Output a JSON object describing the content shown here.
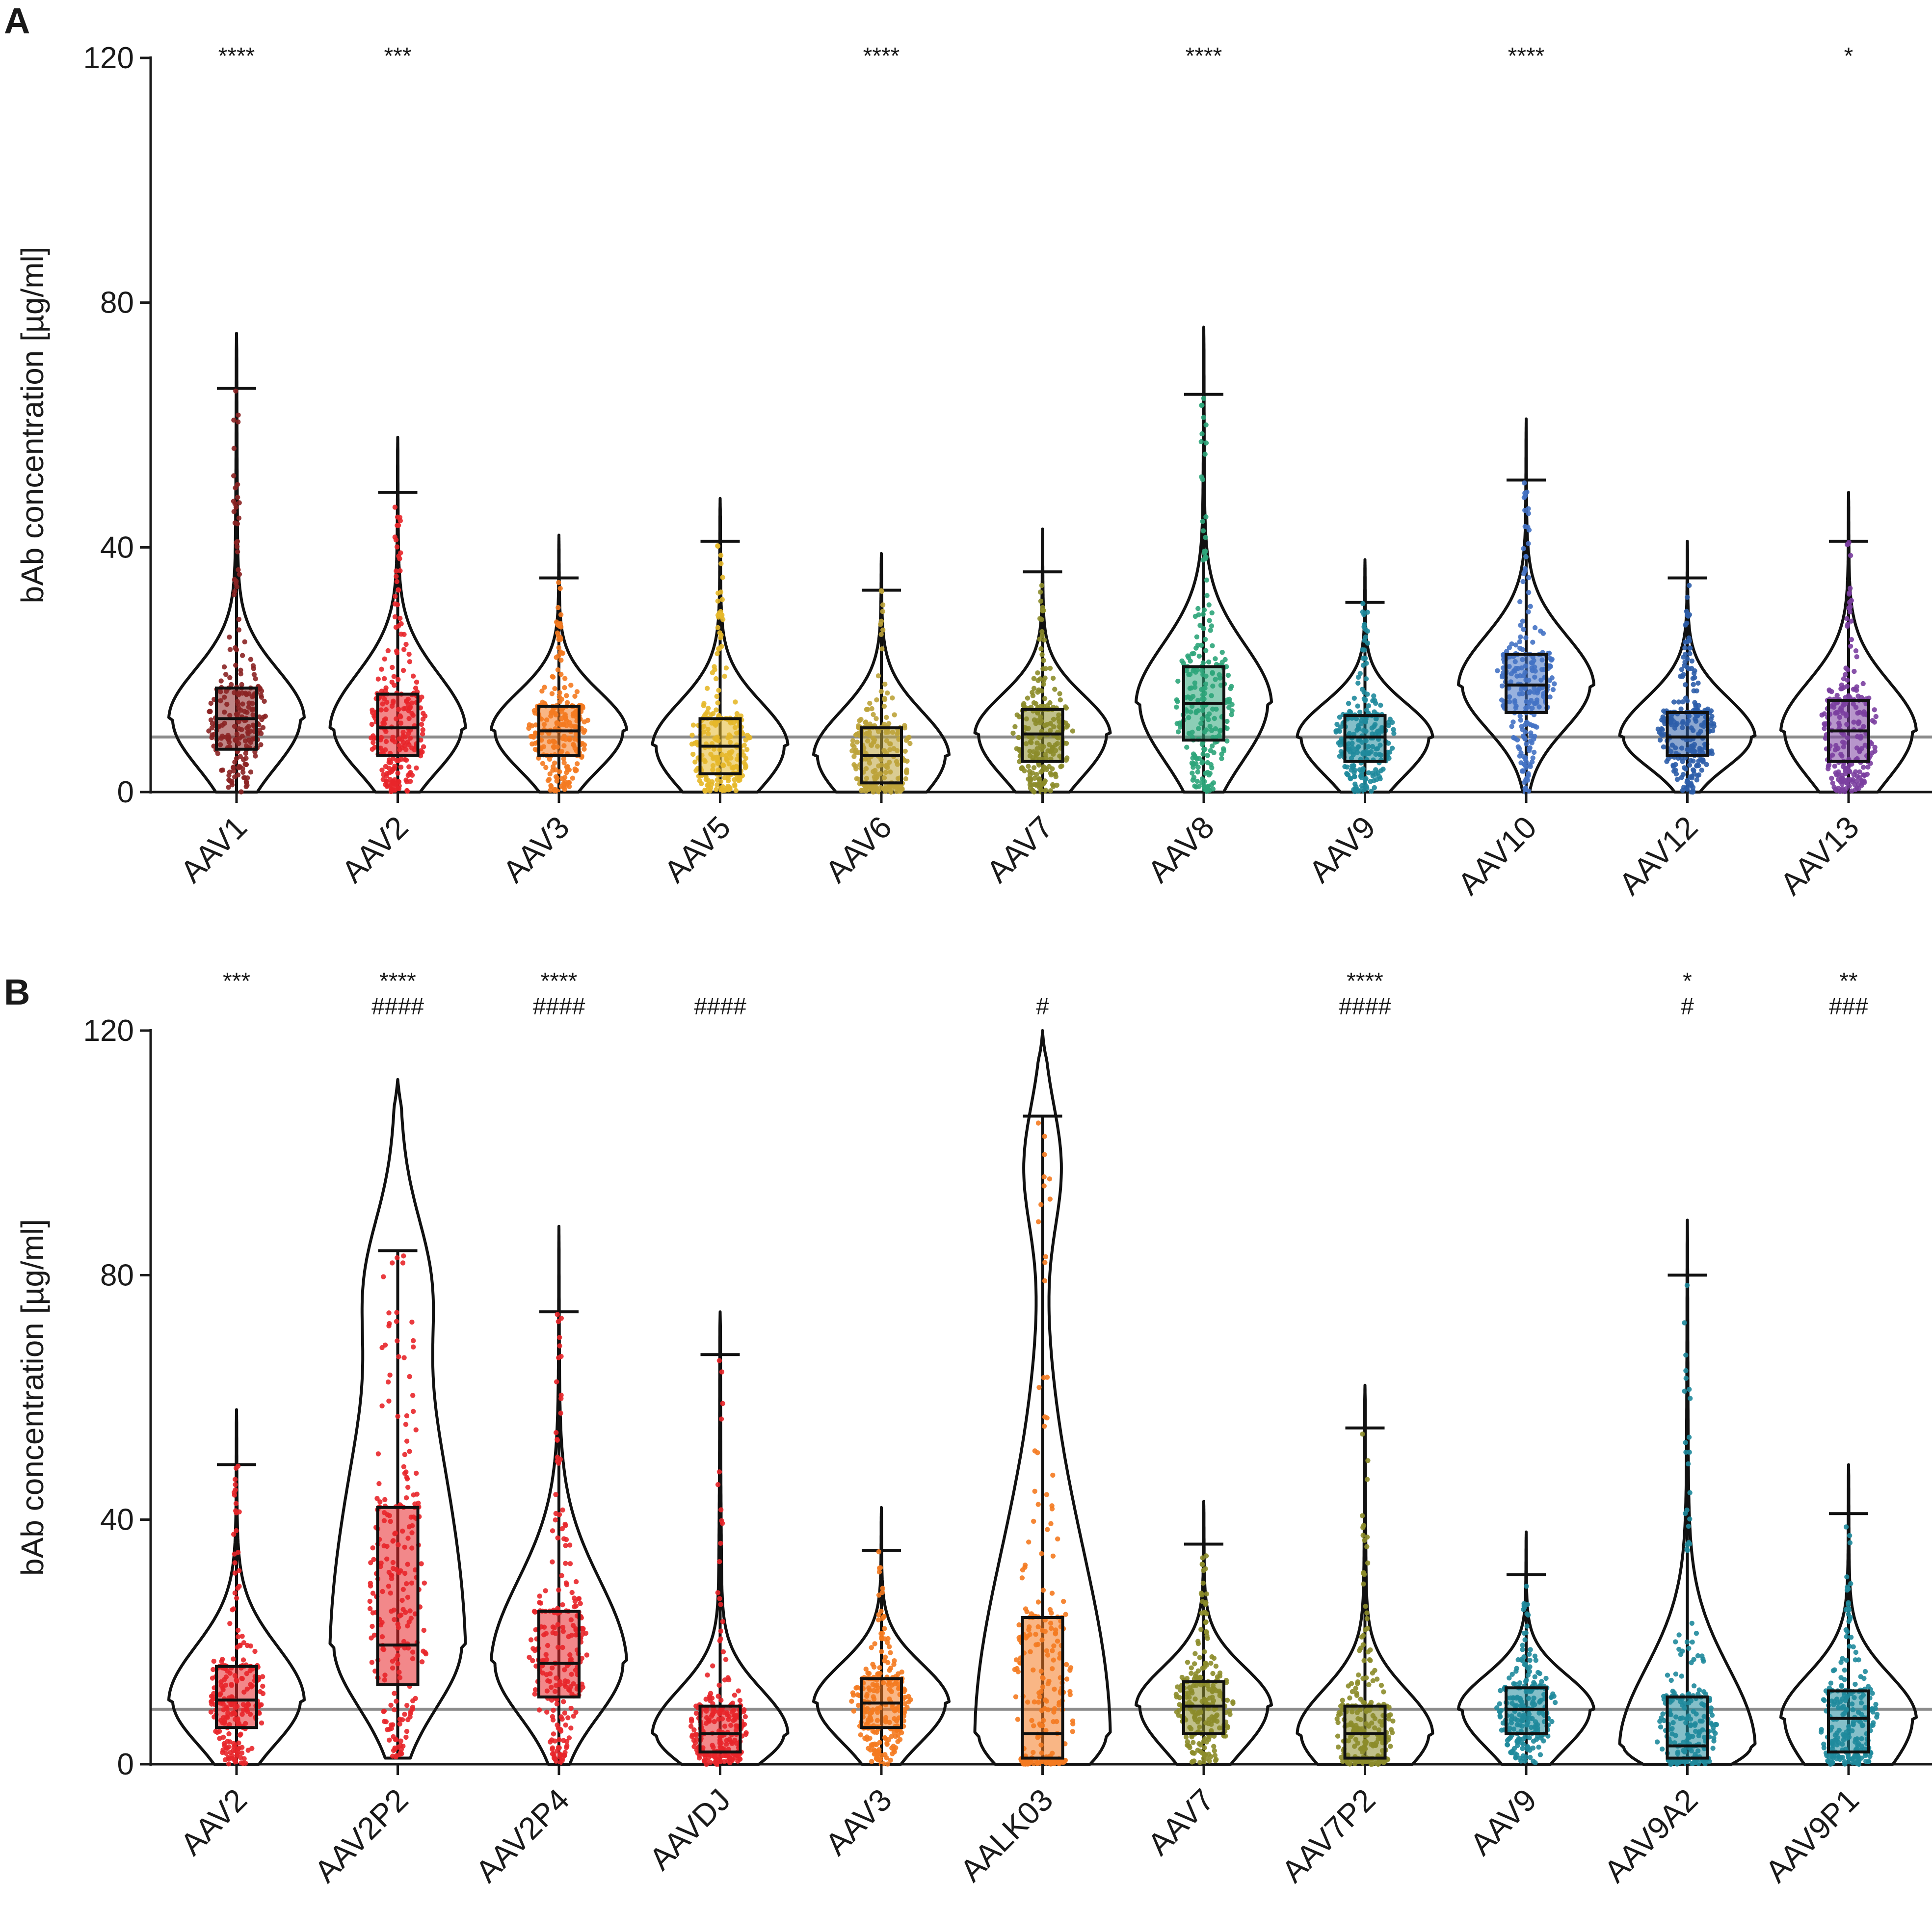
{
  "chart_data": [
    {
      "panel": "A",
      "type": "violin",
      "ylabel": "bAb concentration [µg/ml]",
      "ylim": [
        0,
        120
      ],
      "yticks": [
        0,
        40,
        80,
        120
      ],
      "threshold": 9,
      "categories": [
        {
          "name": "AAV1",
          "color": "#8B2323",
          "sig": [
            "****"
          ],
          "q1": 7,
          "median": 12,
          "q3": 17,
          "whisker_low": 0,
          "whisker_high": 66,
          "max": 75
        },
        {
          "name": "AAV2",
          "color": "#E8262A",
          "sig": [
            "***"
          ],
          "q1": 6,
          "median": 10.5,
          "q3": 16,
          "whisker_low": 0,
          "whisker_high": 49,
          "max": 58
        },
        {
          "name": "AAV3",
          "color": "#F47A20",
          "sig": [],
          "q1": 6,
          "median": 10,
          "q3": 14,
          "whisker_low": 0,
          "whisker_high": 35,
          "max": 42
        },
        {
          "name": "AAV5",
          "color": "#E5B82A",
          "sig": [],
          "q1": 3,
          "median": 7.5,
          "q3": 12,
          "whisker_low": 0,
          "whisker_high": 41,
          "max": 48
        },
        {
          "name": "AAV6",
          "color": "#BCA33A",
          "sig": [
            "****"
          ],
          "q1": 1.5,
          "median": 6,
          "q3": 10.5,
          "whisker_low": 0,
          "whisker_high": 33,
          "max": 39
        },
        {
          "name": "AAV7",
          "color": "#8C8C2A",
          "sig": [],
          "q1": 5,
          "median": 9.5,
          "q3": 13.5,
          "whisker_low": 0,
          "whisker_high": 36,
          "max": 43
        },
        {
          "name": "AAV8",
          "color": "#2EA57A",
          "sig": [
            "****"
          ],
          "q1": 8.5,
          "median": 14.5,
          "q3": 20.5,
          "whisker_low": 0,
          "whisker_high": 65,
          "max": 76
        },
        {
          "name": "AAV9",
          "color": "#1F8A9C",
          "sig": [],
          "q1": 5,
          "median": 9,
          "q3": 12.5,
          "whisker_low": 0,
          "whisker_high": 31,
          "max": 38
        },
        {
          "name": "AAV10",
          "color": "#4472C4",
          "sig": [
            "****"
          ],
          "q1": 13,
          "median": 17.5,
          "q3": 22.5,
          "whisker_low": 0,
          "whisker_high": 51,
          "max": 61
        },
        {
          "name": "AAV12",
          "color": "#2E5EAA",
          "sig": [],
          "q1": 6,
          "median": 9,
          "q3": 13,
          "whisker_low": 0,
          "whisker_high": 35,
          "max": 41
        },
        {
          "name": "AAV13",
          "color": "#7B3FA0",
          "sig": [
            "*"
          ],
          "q1": 5,
          "median": 10,
          "q3": 15,
          "whisker_low": 0,
          "whisker_high": 41,
          "max": 49
        }
      ]
    },
    {
      "panel": "B",
      "type": "violin",
      "ylabel": "bAb concentration [µg/ml]",
      "ylim": [
        0,
        120
      ],
      "yticks": [
        0,
        40,
        80,
        120
      ],
      "threshold": 9,
      "categories": [
        {
          "name": "AAV2",
          "color": "#E8262A",
          "sig": [
            "***",
            ""
          ],
          "q1": 6,
          "median": 10.5,
          "q3": 16,
          "whisker_low": 0,
          "whisker_high": 49,
          "max": 58
        },
        {
          "name": "AAV2P2",
          "color": "#E8262A",
          "sig": [
            "****",
            "####"
          ],
          "q1": 13,
          "median": 19.5,
          "q3": 42,
          "whisker_low": 1,
          "whisker_high": 84,
          "max": 112
        },
        {
          "name": "AAV2P4",
          "color": "#E8262A",
          "sig": [
            "****",
            "####"
          ],
          "q1": 11,
          "median": 16.5,
          "q3": 25,
          "whisker_low": 0,
          "whisker_high": 74,
          "max": 88
        },
        {
          "name": "AAVDJ",
          "color": "#E8262A",
          "sig": [
            "",
            "####"
          ],
          "q1": 2,
          "median": 5,
          "q3": 9.5,
          "whisker_low": 0,
          "whisker_high": 67,
          "max": 74
        },
        {
          "name": "AAV3",
          "color": "#F47A20",
          "sig": [
            "",
            ""
          ],
          "q1": 6,
          "median": 10,
          "q3": 14,
          "whisker_low": 0,
          "whisker_high": 35,
          "max": 42
        },
        {
          "name": "AALK03",
          "color": "#F47A20",
          "sig": [
            "",
            "#"
          ],
          "q1": 1,
          "median": 5,
          "q3": 24,
          "whisker_low": 0,
          "whisker_high": 106,
          "max": 120
        },
        {
          "name": "AAV7",
          "color": "#8C8C2A",
          "sig": [
            "",
            ""
          ],
          "q1": 5,
          "median": 9.5,
          "q3": 13.5,
          "whisker_low": 0,
          "whisker_high": 36,
          "max": 43
        },
        {
          "name": "AAV7P2",
          "color": "#8C8C2A",
          "sig": [
            "****",
            "####"
          ],
          "q1": 1,
          "median": 5,
          "q3": 9.5,
          "whisker_low": 0,
          "whisker_high": 55,
          "max": 62
        },
        {
          "name": "AAV9",
          "color": "#1F8A9C",
          "sig": [
            "",
            ""
          ],
          "q1": 5,
          "median": 9,
          "q3": 12.5,
          "whisker_low": 0,
          "whisker_high": 31,
          "max": 38
        },
        {
          "name": "AAV9A2",
          "color": "#1F8A9C",
          "sig": [
            "*",
            "#"
          ],
          "q1": 1,
          "median": 3,
          "q3": 11,
          "whisker_low": 0,
          "whisker_high": 80,
          "max": 89
        },
        {
          "name": "AAV9P1",
          "color": "#1F8A9C",
          "sig": [
            "**",
            "###"
          ],
          "q1": 2,
          "median": 7.5,
          "q3": 12,
          "whisker_low": 0,
          "whisker_high": 41,
          "max": 49
        }
      ]
    }
  ]
}
